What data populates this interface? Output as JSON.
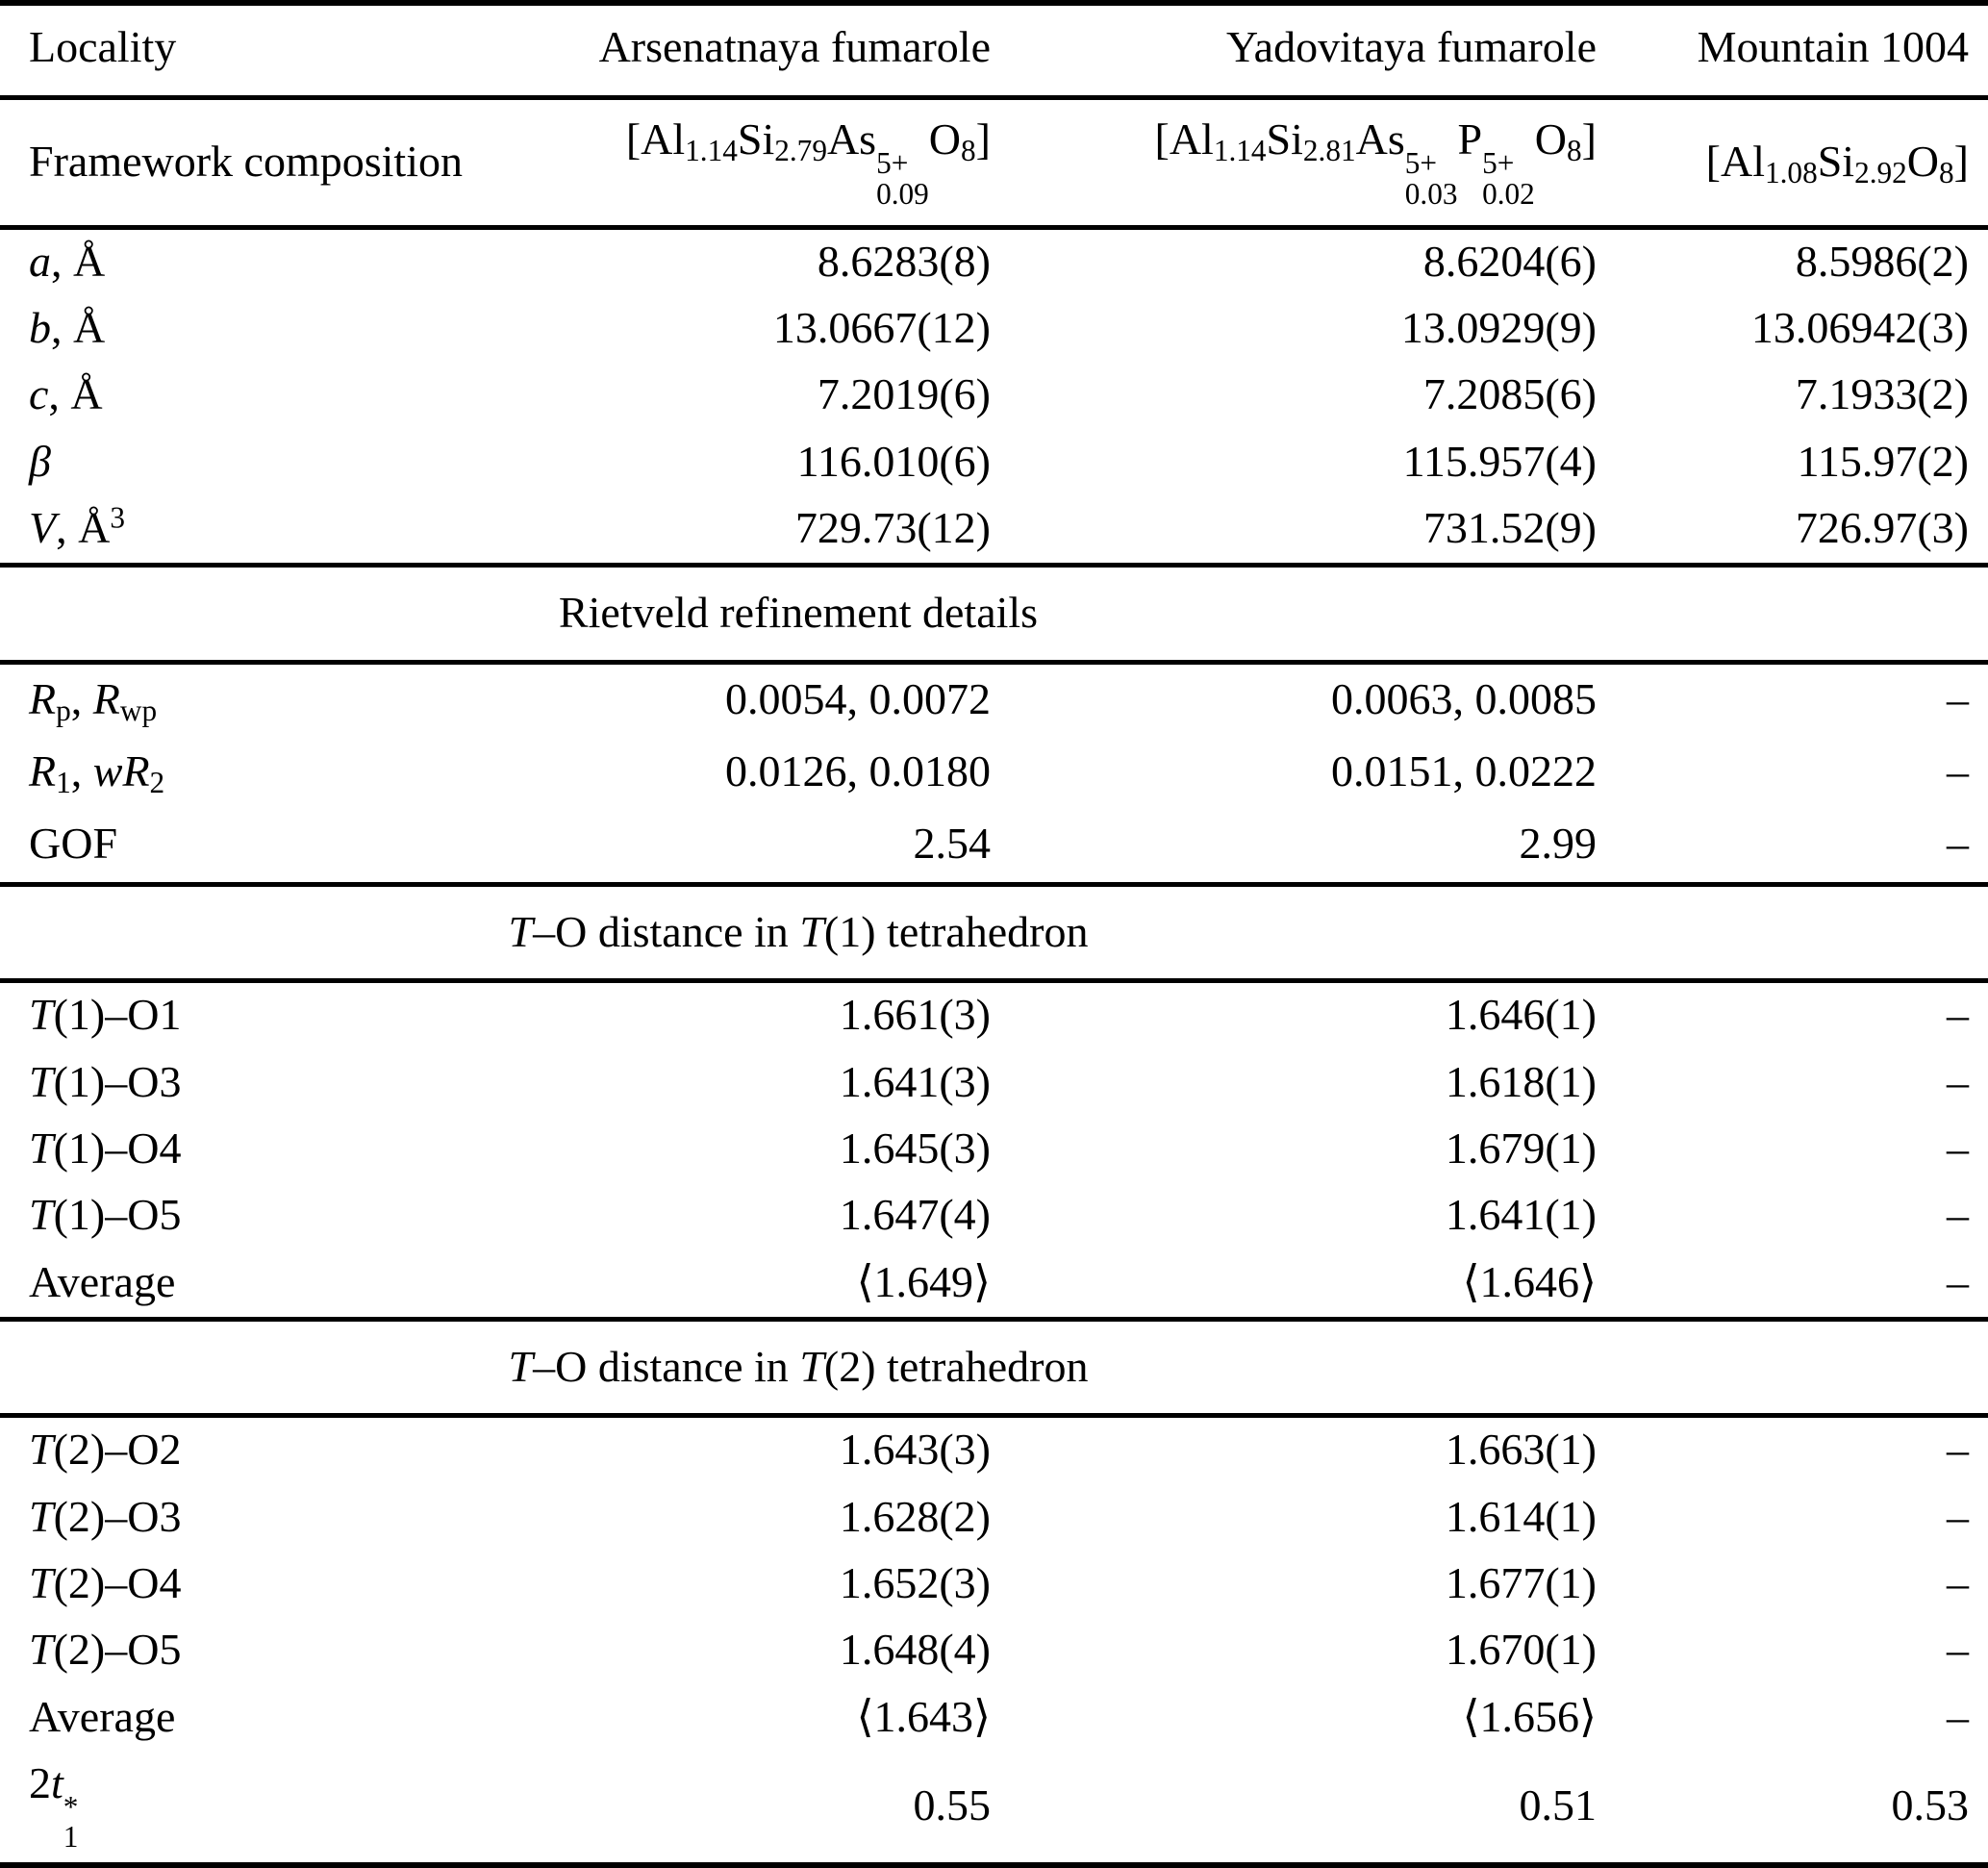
{
  "table": {
    "columns": [
      "Locality",
      "Arsenatnaya fumarole",
      "Yadovitaya fumarole",
      "Mountain 1004"
    ],
    "missing_value_symbol": "–",
    "rows": [
      {
        "kind": "data",
        "name": "row-framework-composition",
        "cls": "frame",
        "topline": true,
        "label": [
          "Framework composition"
        ],
        "values": [
          [
            "[Al",
            {
              "sub": "1.14"
            },
            "Si",
            {
              "sub": "2.79"
            },
            "As",
            {
              "stk": [
                "5+",
                "0.09"
              ]
            },
            "O",
            {
              "sub": "8"
            },
            "]"
          ],
          [
            "[Al",
            {
              "sub": "1.14"
            },
            "Si",
            {
              "sub": "2.81"
            },
            "As",
            {
              "stk": [
                "5+",
                "0.03"
              ]
            },
            "P",
            {
              "stk": [
                "5+",
                "0.02"
              ]
            },
            "O",
            {
              "sub": "8"
            },
            "]"
          ],
          [
            "[Al",
            {
              "sub": "1.08"
            },
            "Si",
            {
              "sub": "2.92"
            },
            "O",
            {
              "sub": "8"
            },
            "]"
          ]
        ]
      },
      {
        "kind": "data",
        "name": "row-a",
        "topline": true,
        "label": [
          {
            "i": "a"
          },
          ", Å"
        ],
        "values": [
          "8.6283(8)",
          "8.6204(6)",
          "8.5986(2)"
        ]
      },
      {
        "kind": "data",
        "name": "row-b",
        "label": [
          {
            "i": "b"
          },
          ", Å"
        ],
        "values": [
          "13.0667(12)",
          "13.0929(9)",
          "13.06942(3)"
        ]
      },
      {
        "kind": "data",
        "name": "row-c",
        "label": [
          {
            "i": "c"
          },
          ", Å"
        ],
        "values": [
          "7.2019(6)",
          "7.2085(6)",
          "7.1933(2)"
        ]
      },
      {
        "kind": "data",
        "name": "row-beta",
        "label": [
          {
            "i": "β"
          }
        ],
        "values": [
          "116.010(6)",
          "115.957(4)",
          "115.97(2)"
        ]
      },
      {
        "kind": "data",
        "name": "row-volume",
        "label": [
          {
            "i": "V"
          },
          ", Å",
          {
            "sup": "3"
          }
        ],
        "values": [
          "729.73(12)",
          "731.52(9)",
          "726.97(3)"
        ]
      },
      {
        "kind": "section",
        "name": "section-rietveld-refinement-details",
        "topline": true,
        "title": [
          "Rietveld refinement details"
        ]
      },
      {
        "kind": "data",
        "name": "row-rp-rwp",
        "cls": "rrow",
        "topline": true,
        "label": [
          {
            "i": "R"
          },
          {
            "sub": "p"
          },
          ", ",
          {
            "i": "R"
          },
          {
            "sub": "wp"
          }
        ],
        "values": [
          "0.0054, 0.0072",
          "0.0063, 0.0085",
          "–"
        ]
      },
      {
        "kind": "data",
        "name": "row-r1-wr2",
        "cls": "rrow",
        "label": [
          {
            "i": "R"
          },
          {
            "sub": "1"
          },
          ", ",
          {
            "i": "w"
          },
          {
            "i": "R"
          },
          {
            "sub": "2"
          }
        ],
        "values": [
          "0.0126, 0.0180",
          "0.0151, 0.0222",
          "–"
        ]
      },
      {
        "kind": "data",
        "name": "row-gof",
        "cls": "rrow",
        "label": [
          "GOF"
        ],
        "values": [
          "2.54",
          "2.99",
          "–"
        ]
      },
      {
        "kind": "section",
        "name": "section-t1-distances",
        "topline": true,
        "title": [
          {
            "i": "T"
          },
          "–O distance in ",
          {
            "i": "T"
          },
          "(1) tetrahedron"
        ]
      },
      {
        "kind": "data",
        "name": "row-t1-o1",
        "topline": true,
        "label": [
          {
            "i": "T"
          },
          "(1)–O1"
        ],
        "values": [
          "1.661(3)",
          "1.646(1)",
          "–"
        ]
      },
      {
        "kind": "data",
        "name": "row-t1-o3",
        "label": [
          {
            "i": "T"
          },
          "(1)–O3"
        ],
        "values": [
          "1.641(3)",
          "1.618(1)",
          "–"
        ]
      },
      {
        "kind": "data",
        "name": "row-t1-o4",
        "label": [
          {
            "i": "T"
          },
          "(1)–O4"
        ],
        "values": [
          "1.645(3)",
          "1.679(1)",
          "–"
        ]
      },
      {
        "kind": "data",
        "name": "row-t1-o5",
        "label": [
          {
            "i": "T"
          },
          "(1)–O5"
        ],
        "values": [
          "1.647(4)",
          "1.641(1)",
          "–"
        ]
      },
      {
        "kind": "data",
        "name": "row-t1-average",
        "label": [
          "Average"
        ],
        "values": [
          "⟨1.649⟩",
          "⟨1.646⟩",
          "–"
        ]
      },
      {
        "kind": "section",
        "name": "section-t2-distances",
        "topline": true,
        "title": [
          {
            "i": "T"
          },
          "–O distance in ",
          {
            "i": "T"
          },
          "(2) tetrahedron"
        ]
      },
      {
        "kind": "data",
        "name": "row-t2-o2",
        "topline": true,
        "label": [
          {
            "i": "T"
          },
          "(2)–O2"
        ],
        "values": [
          "1.643(3)",
          "1.663(1)",
          "–"
        ]
      },
      {
        "kind": "data",
        "name": "row-t2-o3",
        "label": [
          {
            "i": "T"
          },
          "(2)–O3"
        ],
        "values": [
          "1.628(2)",
          "1.614(1)",
          "–"
        ]
      },
      {
        "kind": "data",
        "name": "row-t2-o4",
        "label": [
          {
            "i": "T"
          },
          "(2)–O4"
        ],
        "values": [
          "1.652(3)",
          "1.677(1)",
          "–"
        ]
      },
      {
        "kind": "data",
        "name": "row-t2-o5",
        "label": [
          {
            "i": "T"
          },
          "(2)–O5"
        ],
        "values": [
          "1.648(4)",
          "1.670(1)",
          "–"
        ]
      },
      {
        "kind": "data",
        "name": "row-t2-average",
        "label": [
          "Average"
        ],
        "values": [
          "⟨1.643⟩",
          "⟨1.656⟩",
          "–"
        ]
      },
      {
        "kind": "data",
        "name": "row-2t1",
        "label": [
          "2",
          {
            "i": "t"
          },
          {
            "stk": [
              "*",
              "1"
            ]
          }
        ],
        "values": [
          "0.55",
          "0.51",
          "0.53"
        ]
      }
    ]
  }
}
